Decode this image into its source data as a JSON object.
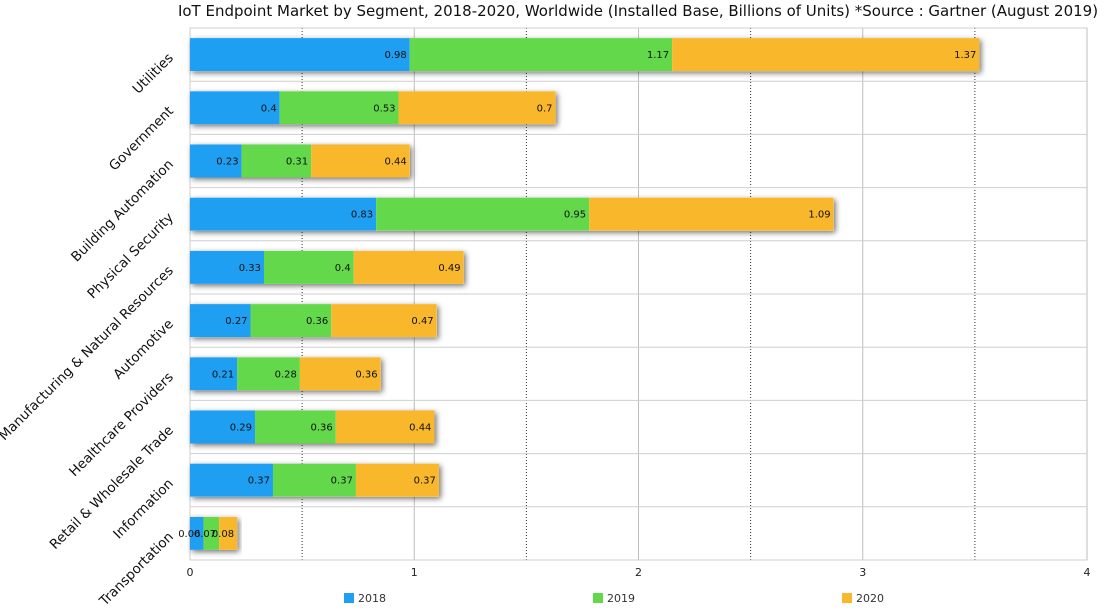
{
  "chart_data": {
    "type": "bar",
    "orientation": "horizontal",
    "stacked": true,
    "title": "IoT Endpoint Market by Segment, 2018-2020, Worldwide (Installed Base, Billions of Units) *Source : Gartner (August 2019)",
    "categories": [
      "Utilities",
      "Government",
      "Building Automation",
      "Physical Security",
      "Manufacturing & Natural Resources",
      "Automotive",
      "Healthcare Providers",
      "Retail & Wholesale Trade",
      "Information",
      "Transportation"
    ],
    "series": [
      {
        "name": "2018",
        "color": "#1E9FF2",
        "values": [
          0.98,
          0.4,
          0.23,
          0.83,
          0.33,
          0.27,
          0.21,
          0.29,
          0.37,
          0.06
        ]
      },
      {
        "name": "2019",
        "color": "#62D84A",
        "values": [
          1.17,
          0.53,
          0.31,
          0.95,
          0.4,
          0.36,
          0.28,
          0.36,
          0.37,
          0.07
        ]
      },
      {
        "name": "2020",
        "color": "#F9B72C",
        "values": [
          1.37,
          0.7,
          0.44,
          1.09,
          0.49,
          0.47,
          0.36,
          0.44,
          0.37,
          0.08
        ]
      }
    ],
    "xlim": [
      0,
      4
    ],
    "xticks": [
      0,
      1,
      2,
      3,
      4
    ],
    "grid": true,
    "legend_position": "bottom",
    "xlabel": "",
    "ylabel": ""
  }
}
